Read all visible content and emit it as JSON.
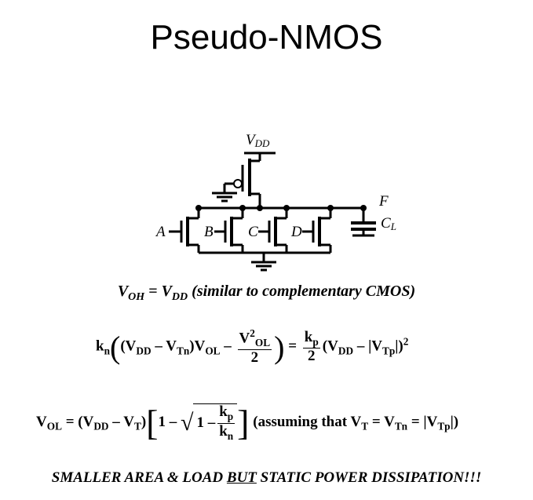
{
  "title": "Pseudo-NMOS",
  "circuit": {
    "vdd_label": "V",
    "vdd_sub": "DD",
    "output_label": "F",
    "load_label": "C",
    "load_sub": "L",
    "inputs": [
      "A",
      "B",
      "C",
      "D"
    ]
  },
  "equations": {
    "voh_lhs": "V",
    "voh_lhs_sub": "OH",
    "voh_eq": " = V",
    "voh_rhs_sub": "DD",
    "voh_note": " (similar to complementary CMOS)",
    "eq2_kn": "k",
    "eq2_kn_sub": "n",
    "eq2_body": "(V",
    "eq2_vdd_sub": "DD",
    "eq2_minus_vt": " – V",
    "eq2_vtn_sub": "Tn",
    "eq2_vol": ")V",
    "eq2_vol_sub": "OL",
    "eq2_minus": " – ",
    "eq2_frac_num": "V",
    "eq2_frac_num_sup": "2",
    "eq2_frac_num_sub": "OL",
    "eq2_frac_den": "2",
    "eq2_equals": " = ",
    "eq2_kp": "k",
    "eq2_kp_sub": "p",
    "eq2_rhs_den": "2",
    "eq2_rhs": "(V",
    "eq2_rhs_vdd_sub": "DD",
    "eq2_rhs_minus": " – |V",
    "eq2_rhs_vtp_sub": "Tp",
    "eq2_rhs_close": "|)",
    "eq2_rhs_sup": "2",
    "eq3_vol": "V",
    "eq3_vol_sub": "OL",
    "eq3_eq": " = (V",
    "eq3_vdd_sub": "DD",
    "eq3_minus": " – V",
    "eq3_vt_sub": "T",
    "eq3_close": ")",
    "eq3_one": "1 – ",
    "eq3_one_inner": "1 – ",
    "eq3_kp": "k",
    "eq3_kp_sub": "p",
    "eq3_kn": "k",
    "eq3_kn_sub": "n",
    "eq3_note": " (assuming that V",
    "eq3_note_vt_sub": "T",
    "eq3_note_eq": " = V",
    "eq3_note_vtn_sub": "Tn",
    "eq3_note_eq2": " = |V",
    "eq3_note_vtp_sub": "Tp",
    "eq3_note_close": "|)"
  },
  "slogan": {
    "part1": "SMALLER AREA & LOAD ",
    "underlined": "BUT",
    "part2": " STATIC POWER DISSIPATION!!!"
  }
}
